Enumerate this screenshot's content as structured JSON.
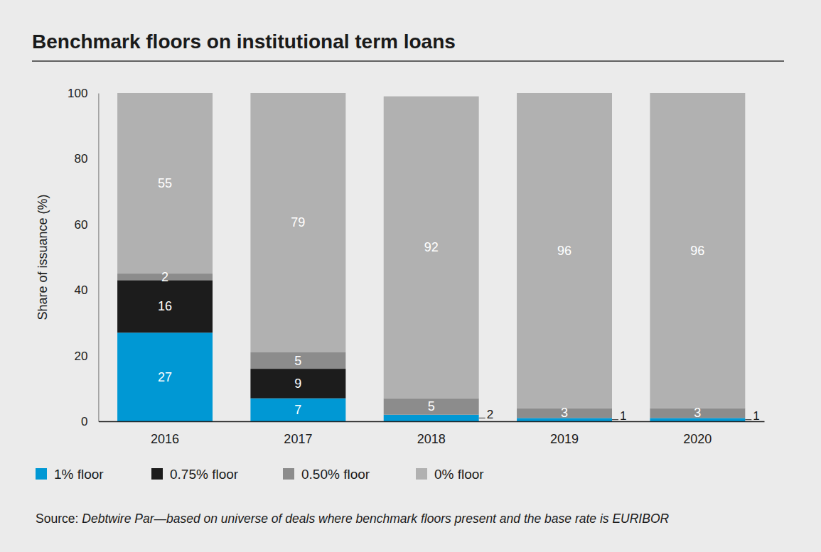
{
  "chart_data": {
    "type": "bar",
    "stacked": true,
    "data_labels": true,
    "grid": false,
    "legend": "bottom",
    "title": "Benchmark floors on institutional term loans",
    "y_label": "Share of issuance (%)",
    "source_label": "Source:",
    "source": "Debtwire Par—based on universe of deals where benchmark floors present and the base rate is EURIBOR",
    "categories": [
      "2016",
      "2017",
      "2018",
      "2019",
      "2020"
    ],
    "series": [
      {
        "name": "1% floor",
        "color": "#0098d4",
        "values": [
          27,
          7,
          2,
          1,
          1
        ]
      },
      {
        "name": "0.75% floor",
        "color": "#1c1c1c",
        "values": [
          16,
          9,
          null,
          null,
          null
        ]
      },
      {
        "name": "0.50% floor",
        "color": "#8c8c8c",
        "values": [
          2,
          5,
          5,
          3,
          3
        ]
      },
      {
        "name": "0% floor",
        "color": "#b1b1b1",
        "values": [
          55,
          79,
          92,
          96,
          96
        ]
      }
    ],
    "ylim": [
      0,
      100
    ],
    "yticks": [
      0,
      20,
      40,
      60,
      80,
      100
    ]
  }
}
